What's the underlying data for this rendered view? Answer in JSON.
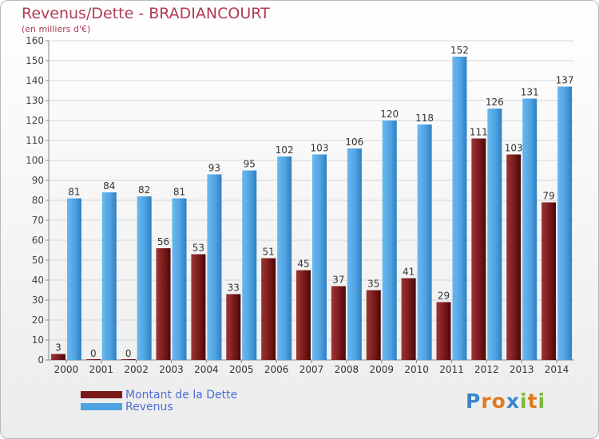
{
  "chart_data": {
    "type": "bar",
    "title": "Revenus/Dette - BRADIANCOURT",
    "subtitle": "(en milliers d'€)",
    "categories": [
      "2000",
      "2001",
      "2002",
      "2003",
      "2004",
      "2005",
      "2006",
      "2007",
      "2008",
      "2009",
      "2010",
      "2011",
      "2012",
      "2013",
      "2014"
    ],
    "series": [
      {
        "name": "Montant de la Dette",
        "color": "#7a1a1a",
        "values": [
          3,
          0,
          0,
          56,
          53,
          33,
          51,
          45,
          37,
          35,
          41,
          29,
          111,
          103,
          79
        ]
      },
      {
        "name": "Revenus",
        "color": "#4fa3e3",
        "values": [
          81,
          84,
          82,
          81,
          93,
          95,
          102,
          103,
          106,
          120,
          118,
          152,
          126,
          131,
          137
        ]
      }
    ],
    "ylim": [
      0,
      160
    ],
    "yticks": [
      0,
      10,
      20,
      30,
      40,
      50,
      60,
      70,
      80,
      90,
      100,
      110,
      120,
      130,
      140,
      150,
      160
    ],
    "grid": true,
    "legend_position": "bottom-left",
    "data_labels": true
  },
  "logo": {
    "letters": [
      "P",
      "r",
      "o",
      "x",
      "i",
      "t",
      "i"
    ],
    "colors": [
      "#3a86c8",
      "#e07a1f",
      "#e07a1f",
      "#3a86c8",
      "#7cb83a",
      "#e07a1f",
      "#7cb83a"
    ]
  }
}
